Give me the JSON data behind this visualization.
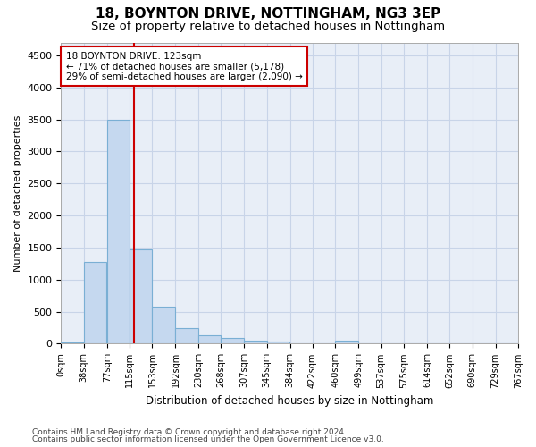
{
  "title1": "18, BOYNTON DRIVE, NOTTINGHAM, NG3 3EP",
  "title2": "Size of property relative to detached houses in Nottingham",
  "xlabel": "Distribution of detached houses by size in Nottingham",
  "ylabel": "Number of detached properties",
  "bar_color": "#c5d8ef",
  "bar_edge_color": "#7aafd4",
  "annotation_line1": "18 BOYNTON DRIVE: 123sqm",
  "annotation_line2": "← 71% of detached houses are smaller (5,178)",
  "annotation_line3": "29% of semi-detached houses are larger (2,090) →",
  "property_line_x": 123,
  "property_line_color": "#cc0000",
  "annotation_box_color": "#cc0000",
  "footer1": "Contains HM Land Registry data © Crown copyright and database right 2024.",
  "footer2": "Contains public sector information licensed under the Open Government Licence v3.0.",
  "bin_edges": [
    0,
    38,
    77,
    115,
    153,
    192,
    230,
    268,
    307,
    345,
    384,
    422,
    460,
    499,
    537,
    575,
    614,
    652,
    690,
    729,
    767
  ],
  "bin_labels": [
    "0sqm",
    "38sqm",
    "77sqm",
    "115sqm",
    "153sqm",
    "192sqm",
    "230sqm",
    "268sqm",
    "307sqm",
    "345sqm",
    "384sqm",
    "422sqm",
    "460sqm",
    "499sqm",
    "537sqm",
    "575sqm",
    "614sqm",
    "652sqm",
    "690sqm",
    "729sqm",
    "767sqm"
  ],
  "counts": [
    20,
    1270,
    3500,
    1470,
    575,
    240,
    135,
    90,
    55,
    35,
    5,
    5,
    45,
    5,
    0,
    0,
    0,
    0,
    0,
    5
  ],
  "ylim": [
    0,
    4700
  ],
  "yticks": [
    0,
    500,
    1000,
    1500,
    2000,
    2500,
    3000,
    3500,
    4000,
    4500
  ],
  "bg_color": "#ffffff",
  "plot_bg_color": "#e8eef7",
  "grid_color": "#c8d4e8"
}
